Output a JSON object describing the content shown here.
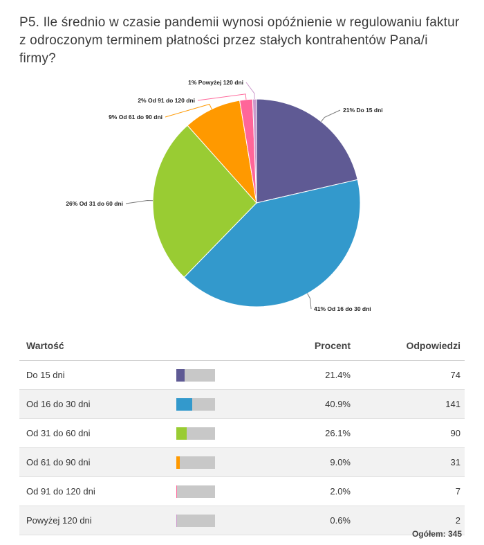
{
  "question": "P5. Ile średnio w czasie pandemii wynosi opóźnienie w regulowaniu faktur z odroczonym terminem płatności przez stałych kontrahentów Pana/i firmy?",
  "chart_data": {
    "type": "pie",
    "slices": [
      {
        "label": "21% Do 15 dni",
        "value": 21.4,
        "color": "#5f5a94"
      },
      {
        "label": "41% Od 16 do 30 dni",
        "value": 40.9,
        "color": "#3399cc"
      },
      {
        "label": "26% Od 31 do 60 dni",
        "value": 26.1,
        "color": "#99cc33"
      },
      {
        "label": "9% Od 61 do 90 dni",
        "value": 9.0,
        "color": "#ff9900"
      },
      {
        "label": "2% Od 91 do 120 dni",
        "value": 2.0,
        "color": "#ff6699"
      },
      {
        "label": "1% Powyżej 120 dni",
        "value": 0.6,
        "color": "#cc99cc"
      }
    ]
  },
  "table": {
    "headers": {
      "value": "Wartość",
      "percent": "Procent",
      "responses": "Odpowiedzi"
    },
    "rows": [
      {
        "label": "Do 15 dni",
        "percent": "21.4%",
        "responses": "74",
        "fraction": 0.214,
        "color": "#5f5a94"
      },
      {
        "label": "Od 16 do 30 dni",
        "percent": "40.9%",
        "responses": "141",
        "fraction": 0.409,
        "color": "#3399cc"
      },
      {
        "label": "Od 31 do 60 dni",
        "percent": "26.1%",
        "responses": "90",
        "fraction": 0.261,
        "color": "#99cc33"
      },
      {
        "label": "Od 61 do 90 dni",
        "percent": "9.0%",
        "responses": "31",
        "fraction": 0.09,
        "color": "#ff9900"
      },
      {
        "label": "Od 91 do 120 dni",
        "percent": "2.0%",
        "responses": "7",
        "fraction": 0.02,
        "color": "#ff6699"
      },
      {
        "label": "Powyżej 120 dni",
        "percent": "0.6%",
        "responses": "2",
        "fraction": 0.006,
        "color": "#cc99cc"
      }
    ],
    "total": "Ogółem: 345"
  }
}
